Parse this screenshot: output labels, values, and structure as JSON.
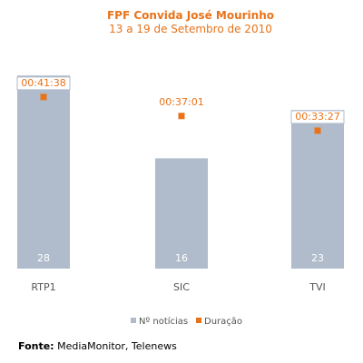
{
  "colors": {
    "bar": "#b0bccb",
    "accent": "#e8731a",
    "text_muted": "#555555"
  },
  "source": {
    "label": "Fonte:",
    "text": " MediaMonitor, Telenews"
  },
  "chart_data": {
    "type": "bar",
    "title": "FPF Convida José Mourinho",
    "subtitle": "13 a 19 de Setembro de 2010",
    "categories": [
      "RTP1",
      "SIC",
      "TVI"
    ],
    "series": [
      {
        "name": "Nº notícias",
        "type": "bar",
        "values": [
          28,
          16,
          23
        ]
      },
      {
        "name": "Duração",
        "type": "scatter",
        "values_seconds": [
          2498,
          2221,
          2007
        ],
        "labels": [
          "00:41:38",
          "00:37:01",
          "00:33:27"
        ]
      }
    ],
    "legend_position": "bottom",
    "grid": false
  }
}
